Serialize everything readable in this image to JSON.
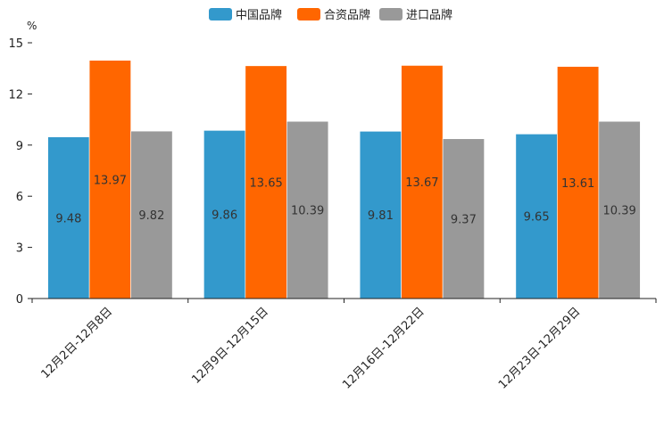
{
  "chart_data": {
    "type": "bar",
    "title": "",
    "xlabel": "",
    "ylabel": "%",
    "ylim": [
      0,
      15
    ],
    "yticks": [
      0,
      3,
      6,
      9,
      12,
      15
    ],
    "grid": false,
    "legend_position": "top-center",
    "categories": [
      "12月2日-12月8日",
      "12月9日-12月15日",
      "12月16日-12月22日",
      "12月23日-12月29日"
    ],
    "series": [
      {
        "name": "中国品牌",
        "color": "#3399CC",
        "values": [
          9.48,
          9.86,
          9.81,
          9.65
        ]
      },
      {
        "name": "合资品牌",
        "color": "#FF6600",
        "values": [
          13.97,
          13.65,
          13.67,
          13.61
        ]
      },
      {
        "name": "进口品牌",
        "color": "#999999",
        "values": [
          9.82,
          10.39,
          9.37,
          10.39
        ]
      }
    ]
  }
}
